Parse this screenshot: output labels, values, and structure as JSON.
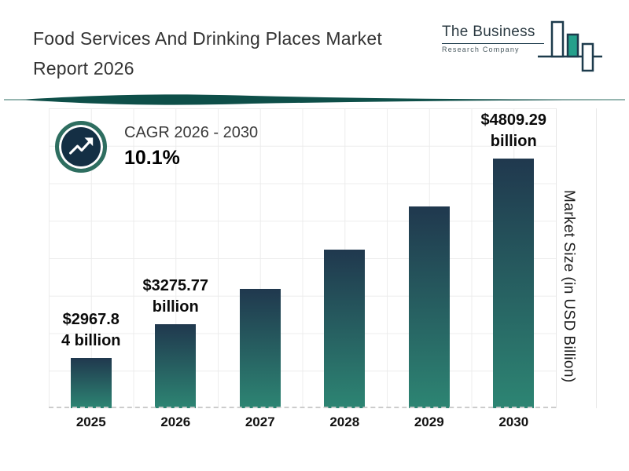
{
  "header": {
    "title_line1": "Food Services And Drinking Places Market",
    "title_line2": "Report 2026"
  },
  "logo": {
    "name": "The Business",
    "subtitle": "Research Company"
  },
  "cagr": {
    "label": "CAGR 2026 - 2030",
    "value": "10.1%"
  },
  "chart_data": {
    "type": "bar",
    "title": "Food Services And Drinking Places Market Report 2026",
    "categories": [
      "2025",
      "2026",
      "2027",
      "2028",
      "2029",
      "2030"
    ],
    "values": [
      2967.84,
      3275.77,
      3606.62,
      3970.89,
      4371.95,
      4809.29
    ],
    "bar_labels": [
      [
        "$2967.8",
        "4 billion"
      ],
      [
        "$3275.77",
        "billion"
      ],
      null,
      null,
      null,
      [
        "$4809.29",
        "billion"
      ]
    ],
    "xlabel": "",
    "ylabel": "Market Size (in USD Billion)",
    "ylim": [
      2500,
      4900
    ],
    "grid": true,
    "legend": false,
    "colors": {
      "bar_gradient_top": "#20384E",
      "bar_gradient_bottom": "#2D8573",
      "accent_teal": "#0E4F49",
      "logo_teal": "#25A08B",
      "logo_navy": "#1D3B4C"
    }
  }
}
